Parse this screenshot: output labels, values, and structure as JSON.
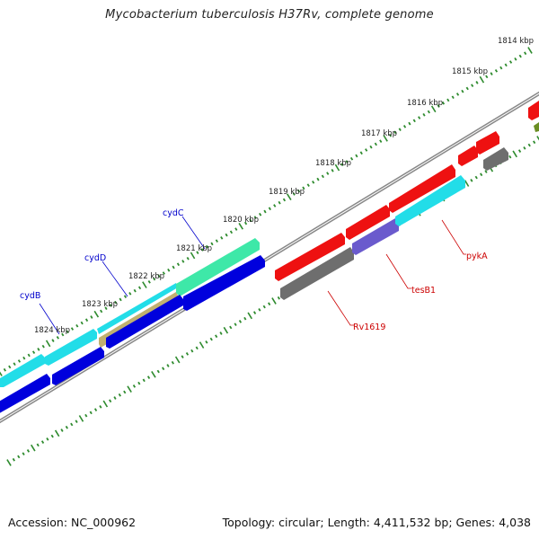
{
  "title": "Mycobacterium tuberculosis H37Rv, complete genome",
  "footer": {
    "accession": "Accession: NC_000962",
    "summary": "Topology: circular; Length: 4,411,532 bp; Genes: 4,038"
  },
  "colors": {
    "backbone": "#888888",
    "tick": "#2e8b2e",
    "blue": "#0000dd",
    "cyan": "#22dde8",
    "teal_green": "#3ee8a8",
    "red": "#ee1111",
    "gray": "#6e6e6e",
    "lavender": "#6a5acd",
    "olive": "#c0b070",
    "olive_green": "#6b8e23",
    "label_blue": "#0000cc",
    "label_red": "#cc0000"
  },
  "scale": {
    "unit": "kbp",
    "labels": [
      "1814 kbp",
      "1815 kbp",
      "1816 kbp",
      "1817 kbp",
      "1818 kbp",
      "1819 kbp",
      "1820 kbp",
      "1821 kbp",
      "1822 kbp",
      "1823 kbp",
      "1824 kbp"
    ]
  },
  "genes": [
    {
      "name": "cydB",
      "color": "label_blue"
    },
    {
      "name": "cydD",
      "color": "label_blue"
    },
    {
      "name": "cydC",
      "color": "label_blue"
    },
    {
      "name": "Rv1619",
      "color": "label_red"
    },
    {
      "name": "tesB1",
      "color": "label_red"
    },
    {
      "name": "pykA",
      "color": "label_red"
    }
  ]
}
